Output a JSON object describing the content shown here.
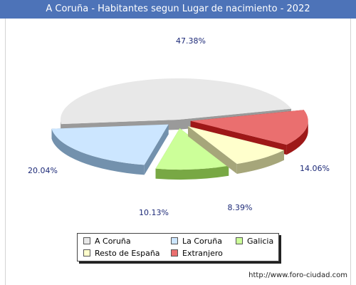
{
  "window": {
    "title": "A Coruña - Habitantes segun Lugar de nacimiento - 2022"
  },
  "credit": "http://www.foro-ciudad.com",
  "chart_data": {
    "type": "pie",
    "title": "A Coruña - Habitantes segun Lugar de nacimiento - 2022",
    "legend_position": "bottom",
    "exploded": true,
    "three_d": true,
    "slices": [
      {
        "name": "A Coruña",
        "value": 47.38,
        "label": "47.38%",
        "color": "#e8e8e8",
        "side_color": "#9a9a9a"
      },
      {
        "name": "Extranjero",
        "value": 14.06,
        "label": "14.06%",
        "color": "#ea6f6f",
        "side_color": "#9e1818"
      },
      {
        "name": "Resto de España",
        "value": 8.39,
        "label": "8.39%",
        "color": "#ffffcc",
        "side_color": "#a6a67a"
      },
      {
        "name": "Galicia",
        "value": 10.13,
        "label": "10.13%",
        "color": "#ccff99",
        "side_color": "#78a844"
      },
      {
        "name": "La Coruña",
        "value": 20.04,
        "label": "20.04%",
        "color": "#cce6ff",
        "side_color": "#7391ad"
      }
    ],
    "legend": [
      {
        "name": "A Coruña",
        "color": "#e8e8e8"
      },
      {
        "name": "La Coruña",
        "color": "#cce6ff"
      },
      {
        "name": "Galicia",
        "color": "#ccff99"
      },
      {
        "name": "Resto de España",
        "color": "#ffffcc"
      },
      {
        "name": "Extranjero",
        "color": "#ea6f6f"
      }
    ]
  }
}
